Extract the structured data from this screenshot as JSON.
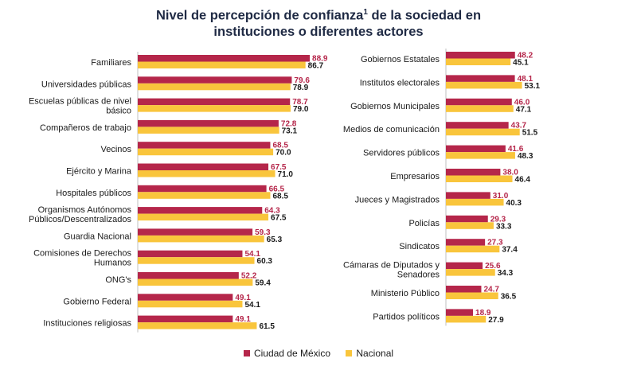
{
  "colors": {
    "cdmx": "#b5264a",
    "nacional": "#f9c53c",
    "cdmx_label": "#b5264a",
    "nacional_label": "#1a1a1a"
  },
  "title": {
    "line1_pre": "Nivel de percepción de confianza",
    "footnote": "1",
    "line1_post": " de la sociedad en",
    "line2": "instituciones o diferentes actores"
  },
  "legend": {
    "cdmx": "Ciudad de México",
    "nacional": "Nacional"
  },
  "chart_data": [
    {
      "type": "bar",
      "orientation": "horizontal",
      "categories": [
        [
          "Familiares"
        ],
        [
          "Universidades públicas"
        ],
        [
          "Escuelas públicas de nivel",
          "básico"
        ],
        [
          "Compañeros de trabajo"
        ],
        [
          "Vecinos"
        ],
        [
          "Ejército y Marina"
        ],
        [
          "Hospitales públicos"
        ],
        [
          "Organismos Autónomos",
          "Públicos/Descentralizados"
        ],
        [
          "Guardia Nacional"
        ],
        [
          "Comisiones de Derechos",
          "Humanos"
        ],
        [
          "ONG's"
        ],
        [
          "Gobierno Federal"
        ],
        [
          "Instituciones religiosas"
        ]
      ],
      "series": [
        {
          "name": "Ciudad de México",
          "values": [
            88.9,
            79.6,
            78.7,
            72.8,
            68.5,
            67.5,
            66.5,
            64.3,
            59.3,
            54.1,
            52.2,
            49.1,
            49.1
          ]
        },
        {
          "name": "Nacional",
          "values": [
            86.7,
            78.9,
            79.0,
            73.1,
            70.0,
            71.0,
            68.5,
            67.5,
            65.3,
            60.3,
            59.4,
            54.1,
            61.5
          ]
        }
      ]
    },
    {
      "type": "bar",
      "orientation": "horizontal",
      "categories": [
        [
          "Gobiernos Estatales"
        ],
        [
          "Institutos electorales"
        ],
        [
          "Gobiernos Municipales"
        ],
        [
          "Medios de comunicación"
        ],
        [
          "Servidores públicos"
        ],
        [
          "Empresarios"
        ],
        [
          "Jueces y Magistrados"
        ],
        [
          "Policías"
        ],
        [
          "Sindicatos"
        ],
        [
          "Cámaras de Diputados y",
          "Senadores"
        ],
        [
          "Ministerio Público"
        ],
        [
          "Partidos políticos"
        ]
      ],
      "series": [
        {
          "name": "Ciudad de México",
          "values": [
            48.2,
            48.1,
            46.0,
            43.7,
            41.6,
            38.0,
            31.0,
            29.3,
            27.3,
            25.6,
            24.7,
            18.9
          ]
        },
        {
          "name": "Nacional",
          "values": [
            45.1,
            53.1,
            47.1,
            51.5,
            48.3,
            46.4,
            40.3,
            33.3,
            37.4,
            34.3,
            36.5,
            27.9
          ]
        }
      ]
    }
  ]
}
